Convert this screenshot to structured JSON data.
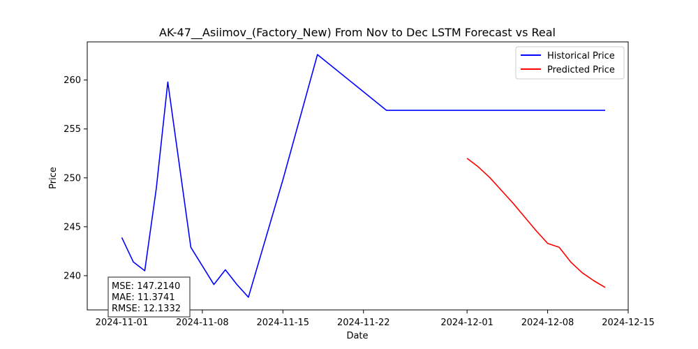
{
  "chart_data": {
    "type": "line",
    "title": "AK-47__Asiimov_(Factory_New) From Nov to Dec LSTM Forecast vs Real",
    "xlabel": "Date",
    "ylabel": "Price",
    "xlim": [
      "2024-10-29",
      "2024-12-15"
    ],
    "ylim": [
      236.5,
      263.9
    ],
    "x_ticks": [
      "2024-11-01",
      "2024-11-08",
      "2024-11-15",
      "2024-11-22",
      "2024-12-01",
      "2024-12-08",
      "2024-12-15"
    ],
    "y_ticks": [
      240,
      245,
      250,
      255,
      260
    ],
    "grid": false,
    "legend_position": "top-right",
    "series": [
      {
        "name": "Historical Price",
        "color": "#0000ff",
        "x": [
          "2024-11-01",
          "2024-11-02",
          "2024-11-03",
          "2024-11-04",
          "2024-11-05",
          "2024-11-07",
          "2024-11-09",
          "2024-11-10",
          "2024-11-11",
          "2024-11-12",
          "2024-11-15",
          "2024-11-18",
          "2024-11-24",
          "2024-12-13"
        ],
        "y": [
          243.9,
          241.4,
          240.5,
          248.9,
          259.8,
          242.9,
          239.1,
          240.6,
          239.1,
          237.8,
          249.8,
          262.6,
          256.9,
          256.9
        ]
      },
      {
        "name": "Predicted Price",
        "color": "#ff0000",
        "x": [
          "2024-12-01",
          "2024-12-02",
          "2024-12-03",
          "2024-12-04",
          "2024-12-05",
          "2024-12-06",
          "2024-12-07",
          "2024-12-08",
          "2024-12-09",
          "2024-12-10",
          "2024-12-11",
          "2024-12-12",
          "2024-12-13"
        ],
        "y": [
          252.0,
          251.1,
          250.0,
          248.7,
          247.4,
          246.0,
          244.6,
          243.3,
          242.9,
          241.4,
          240.3,
          239.5,
          238.8
        ]
      }
    ],
    "annotation": {
      "lines": [
        "MSE: 147.2140",
        "MAE: 11.3741",
        "RMSE: 12.1332"
      ]
    }
  }
}
